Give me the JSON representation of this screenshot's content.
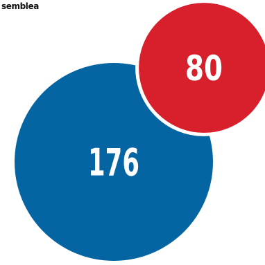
{
  "header": {
    "label": "semblea"
  },
  "chart_data": {
    "type": "bubble",
    "values": [
      {
        "value": 176,
        "label": "176",
        "color": "#0565a3"
      },
      {
        "value": 80,
        "label": "80",
        "color": "#d7202b"
      }
    ],
    "stroke_color": "#ffffff"
  }
}
